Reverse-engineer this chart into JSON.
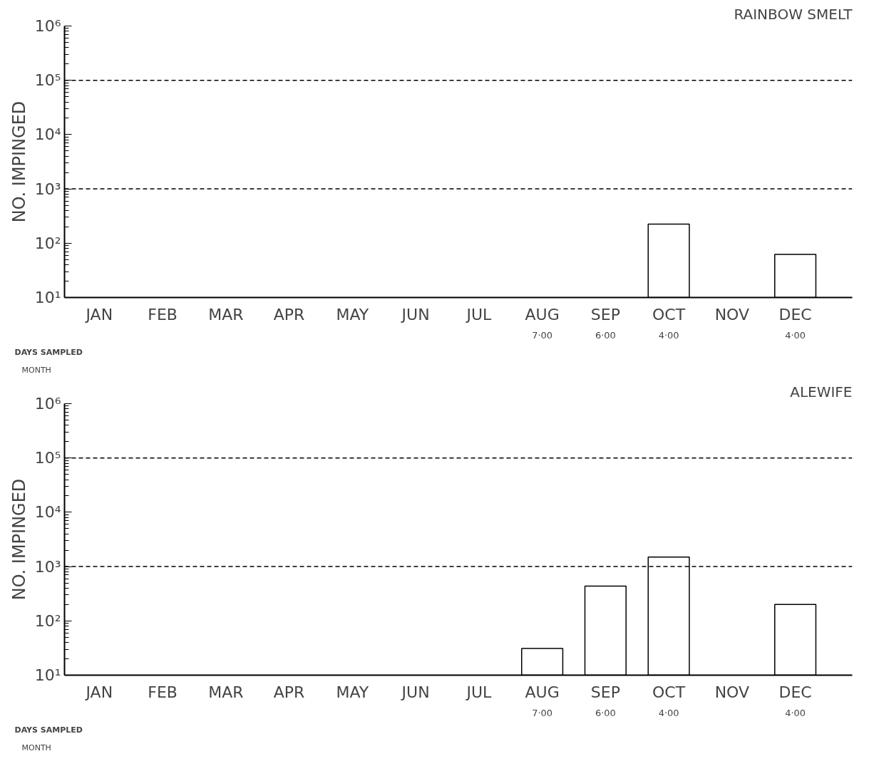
{
  "chart_data": [
    {
      "type": "bar",
      "title": "RAINBOW SMELT",
      "ylabel": "NO. IMPINGED",
      "categories": [
        "JAN",
        "FEB",
        "MAR",
        "APR",
        "MAY",
        "JUN",
        "JUL",
        "AUG",
        "SEP",
        "OCT",
        "NOV",
        "DEC"
      ],
      "values": [
        null,
        null,
        null,
        null,
        null,
        null,
        null,
        null,
        null,
        224,
        null,
        62
      ],
      "color": "#ffffff",
      "log": true,
      "ylim": [
        10,
        1000000
      ],
      "yticks": [
        {
          "value": 10,
          "label": "10¹"
        },
        {
          "value": 100,
          "label": "10²"
        },
        {
          "value": 1000,
          "label": "10³"
        },
        {
          "value": 10000,
          "label": "10⁴"
        },
        {
          "value": 100000,
          "label": "10⁵"
        },
        {
          "value": 1000000,
          "label": "10⁶"
        }
      ],
      "ref_lines": [
        {
          "axis": "y",
          "value": 1000,
          "line_style": "dashed",
          "color": "#000000"
        },
        {
          "axis": "y",
          "value": 100000,
          "line_style": "dashed",
          "color": "#000000"
        }
      ],
      "grid": false,
      "annotations": [
        "DAYS SAMPLED",
        "MONTH",
        "7·00",
        "6·00",
        "4·00",
        "4·00"
      ]
    },
    {
      "type": "bar",
      "title": "ALEWIFE",
      "ylabel": "NO. IMPINGED",
      "categories": [
        "JAN",
        "FEB",
        "MAR",
        "APR",
        "MAY",
        "JUN",
        "JUL",
        "AUG",
        "SEP",
        "OCT",
        "NOV",
        "DEC"
      ],
      "values": [
        null,
        null,
        null,
        null,
        null,
        null,
        null,
        31,
        436,
        1500,
        null,
        200
      ],
      "color": "#ffffff",
      "log": true,
      "ylim": [
        10,
        1000000
      ],
      "yticks": [
        {
          "value": 10,
          "label": "10¹"
        },
        {
          "value": 100,
          "label": "10²"
        },
        {
          "value": 1000,
          "label": "10³"
        },
        {
          "value": 10000,
          "label": "10⁴"
        },
        {
          "value": 100000,
          "label": "10⁵"
        },
        {
          "value": 1000000,
          "label": "10⁶"
        }
      ],
      "ref_lines": [
        {
          "axis": "y",
          "value": 1000,
          "line_style": "dashed",
          "color": "#000000"
        },
        {
          "axis": "y",
          "value": 100000,
          "line_style": "dashed",
          "color": "#000000"
        }
      ],
      "grid": false,
      "annotations": [
        "DAYS SAMPLED",
        "MONTH",
        "7·00",
        "6·00",
        "4·00",
        "4·00"
      ]
    }
  ]
}
